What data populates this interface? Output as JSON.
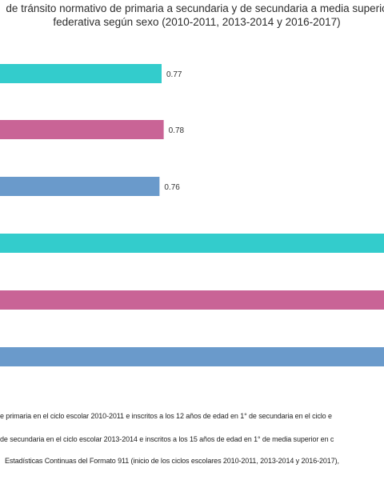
{
  "chart_data": {
    "type": "bar",
    "orientation": "horizontal",
    "title_lines": [
      "de tránsito normativo  de primaria  a secundaria y de secundaria a media superio",
      "federativa según sexo (2010-2011, 2013-2014 y 2016-2017)"
    ],
    "bars": [
      {
        "value": 0.77,
        "label": "0.77",
        "color": "#33cccc"
      },
      {
        "value": 0.78,
        "label": "0.78",
        "color": "#c96496"
      },
      {
        "value": 0.76,
        "label": "0.76",
        "color": "#6a9acb"
      },
      {
        "value": null,
        "label": "",
        "color": "#33cccc"
      },
      {
        "value": null,
        "label": "",
        "color": "#c96496"
      },
      {
        "value": null,
        "label": "",
        "color": "#6a9acb"
      }
    ],
    "grid": false,
    "legend": "none"
  },
  "notes": [
    "e primaria en el ciclo escolar 2010-2011 e  inscritos a los 12 años de edad en 1° de secundaria en el ciclo e",
    "de secundaria en el ciclo escolar 2013-2014 e inscritos a los 15 años de edad en 1° de media superior en c",
    "Estadísticas Continuas del Formato 911 (inicio de los ciclos escolares 2010-2011, 2013-2014 y 2016-2017),"
  ]
}
